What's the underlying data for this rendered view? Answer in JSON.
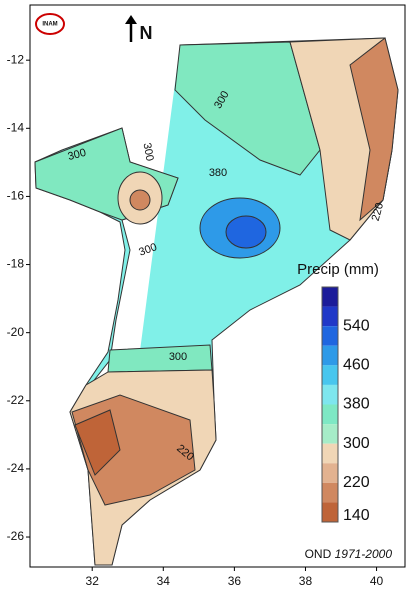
{
  "logo": "INAM",
  "north": "N",
  "axes": {
    "xlim": [
      30.25,
      40.8
    ],
    "xticks": [
      32,
      34,
      36,
      38,
      40
    ],
    "ylim": [
      -26.88,
      -10.38
    ],
    "yticks": [
      -12,
      -14,
      -16,
      -18,
      -20,
      -22,
      -24,
      -26
    ]
  },
  "contour_labels": [
    300,
    300,
    300,
    380,
    300,
    300,
    220,
    220
  ],
  "legend": {
    "title": "Precip (mm)",
    "labels": [
      540,
      460,
      380,
      300,
      220,
      140
    ],
    "colors": [
      "#1c1c9a",
      "#2038c8",
      "#1f66e0",
      "#2e9ae8",
      "#48c6ee",
      "#7ee6ee",
      "#7ee8c4",
      "#a6ecc8",
      "#f0d6b6",
      "#e2b290",
      "#d08860",
      "#bf6438"
    ]
  },
  "footer": {
    "season": "OND",
    "period": "1971-2000"
  }
}
